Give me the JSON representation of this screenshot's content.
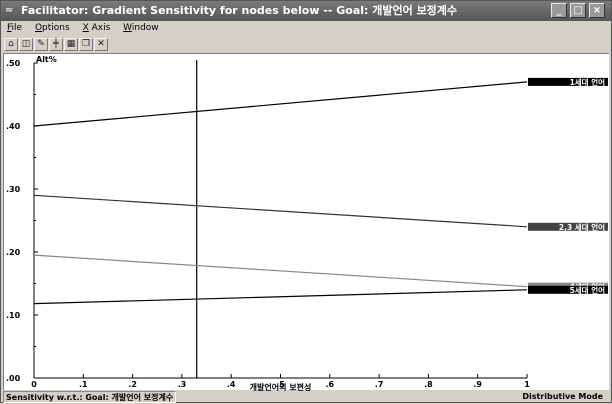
{
  "window": {
    "title": "Facilitator: Gradient Sensitivity for nodes below -- Goal: 개발언어 보정계수",
    "controls": [
      "minimize",
      "maximize",
      "close"
    ]
  },
  "menu": [
    "File",
    "Options",
    "X Axis",
    "Window"
  ],
  "toolbar": {
    "icons": [
      "home-icon",
      "open-icon",
      "edit-icon",
      "chart-icon",
      "table-icon",
      "copy-icon",
      "close-icon"
    ]
  },
  "chart_data": {
    "type": "line",
    "ylabel": "Alt%",
    "xlabel": "개발언어의 보편성",
    "xlim": [
      0,
      1
    ],
    "ylim": [
      0,
      0.5
    ],
    "xticks": [
      "0",
      ".1",
      ".2",
      ".3",
      ".4",
      ".5",
      ".6",
      ".7",
      ".8",
      ".9",
      "1"
    ],
    "yticks": [
      ".00",
      ".10",
      ".20",
      ".30",
      ".40",
      ".50"
    ],
    "current_x": 0.33,
    "series": [
      {
        "name": "1세대 언어",
        "x": [
          0,
          1
        ],
        "y": [
          0.4,
          0.47
        ],
        "color": "#000000",
        "label_bg": "#000000",
        "label_fg": "#ffffff"
      },
      {
        "name": "2,3 세대 언어",
        "x": [
          0,
          1
        ],
        "y": [
          0.29,
          0.24
        ],
        "color": "#333333",
        "label_bg": "#444444",
        "label_fg": "#ffffff"
      },
      {
        "name": "4세대 언어",
        "x": [
          0,
          1
        ],
        "y": [
          0.195,
          0.145
        ],
        "color": "#888888",
        "label_bg": "#888888",
        "label_fg": "#ffffff"
      },
      {
        "name": "5세대 언어",
        "x": [
          0,
          1
        ],
        "y": [
          0.118,
          0.14
        ],
        "color": "#000000",
        "label_bg": "#000000",
        "label_fg": "#ffffff"
      }
    ]
  },
  "status": {
    "left": "Sensitivity w.r.t.: Goal: 개발언어 보정계수",
    "right": "Distributive Mode"
  }
}
